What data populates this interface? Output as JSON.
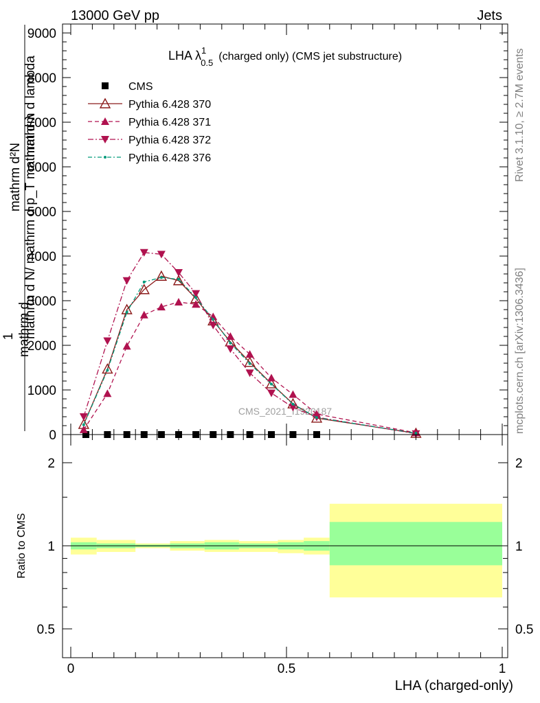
{
  "header": {
    "left": "13000 GeV pp",
    "right": "Jets"
  },
  "side_text": {
    "rivet": "Rivet 3.1.10, ≥ 2.7M events",
    "mcplots": "mcplots.cern.ch [arXiv:1306.3436]"
  },
  "watermark": "CMS_2021_I1920187",
  "colors": {
    "cms": "#000000",
    "p370": "#8b1a1a",
    "p371": "#b0124f",
    "p372": "#b0124f",
    "p376": "#009a7a",
    "band_inner": "#99ff99",
    "band_outer": "#ffff99"
  },
  "chart_data": [
    {
      "type": "line",
      "title": "LHA λ¹₀.₅ (charged only) (CMS jet substructure)",
      "title_main": "LHA λ",
      "title_sup": "1",
      "title_sub": "0.5",
      "title_rest": "(charged only) (CMS jet substructure)",
      "ylabel_left": "1",
      "ylabel_num": "mathrm d²N",
      "ylabel_den": "mathrm d N/ mathrm d p_T mathrm d λ",
      "ylabel_fragments": [
        "mathrm d",
        "N",
        "mathrm d p",
        "mathrm d",
        "mathrm d lambda",
        "T",
        "T",
        "mathrm d N",
        "mathrm d p",
        "mathrm d"
      ],
      "xlim": [
        0,
        1
      ],
      "ylim": [
        0,
        9200
      ],
      "ytick_labels": [
        "0",
        "1000",
        "2000",
        "3000",
        "4000",
        "5000",
        "6000",
        "7000",
        "8000",
        "9000"
      ],
      "yticks": [
        0,
        1000,
        2000,
        3000,
        4000,
        5000,
        6000,
        7000,
        8000,
        9000
      ],
      "legend": [
        "CMS",
        "Pythia 6.428 370",
        "Pythia 6.428 371",
        "Pythia 6.428 372",
        "Pythia 6.428 376"
      ],
      "legend_placement": "top-left",
      "series": [
        {
          "name": "CMS",
          "x": [
            0.035,
            0.085,
            0.13,
            0.17,
            0.21,
            0.25,
            0.29,
            0.33,
            0.37,
            0.415,
            0.465,
            0.515,
            0.57
          ],
          "y": [
            0,
            0,
            0,
            0,
            0,
            0,
            0,
            0,
            0,
            0,
            0,
            0,
            0
          ]
        },
        {
          "name": "Pythia 6.428 370",
          "x": [
            0.03,
            0.085,
            0.13,
            0.17,
            0.21,
            0.25,
            0.29,
            0.33,
            0.37,
            0.415,
            0.465,
            0.515,
            0.57,
            0.8
          ],
          "y": [
            230,
            1470,
            2800,
            3250,
            3550,
            3450,
            3050,
            2550,
            2080,
            1620,
            1140,
            690,
            370,
            30
          ]
        },
        {
          "name": "Pythia 6.428 371",
          "x": [
            0.03,
            0.085,
            0.13,
            0.17,
            0.21,
            0.25,
            0.29,
            0.33,
            0.37,
            0.415,
            0.465,
            0.515,
            0.57,
            0.8
          ],
          "y": [
            110,
            920,
            1980,
            2680,
            2860,
            2970,
            2920,
            2640,
            2200,
            1800,
            1270,
            900,
            460,
            40
          ]
        },
        {
          "name": "Pythia 6.428 372",
          "x": [
            0.03,
            0.085,
            0.13,
            0.17,
            0.21,
            0.25,
            0.29,
            0.33,
            0.37,
            0.415,
            0.465,
            0.515,
            0.57,
            0.8
          ],
          "y": [
            400,
            2100,
            3450,
            4080,
            4040,
            3630,
            3160,
            2450,
            1920,
            1380,
            930,
            610,
            390,
            20
          ]
        },
        {
          "name": "Pythia 6.428 376",
          "x": [
            0.03,
            0.085,
            0.13,
            0.17,
            0.21,
            0.25,
            0.29,
            0.33,
            0.37,
            0.415,
            0.465,
            0.515,
            0.57,
            0.8
          ],
          "y": [
            220,
            1440,
            2740,
            3420,
            3520,
            3480,
            3070,
            2580,
            2050,
            1590,
            1130,
            680,
            380,
            30
          ]
        }
      ]
    },
    {
      "type": "area",
      "ylabel": "Ratio to CMS",
      "xlabel": "LHA (charged-only)",
      "xlim": [
        -0.02,
        1.02
      ],
      "ylim": [
        0.42,
        2.3
      ],
      "ytick_labels": [
        "0.5",
        "1",
        "2"
      ],
      "yticks": [
        0.5,
        1,
        2
      ],
      "xtick_labels": [
        "0",
        "0.5",
        "1"
      ],
      "xticks": [
        0,
        0.5,
        1
      ],
      "reference_line": 1,
      "bands": [
        {
          "x0": 0.0,
          "x1": 0.06,
          "outer": [
            0.93,
            1.07
          ],
          "inner": [
            0.97,
            1.03
          ]
        },
        {
          "x0": 0.06,
          "x1": 0.15,
          "outer": [
            0.95,
            1.05
          ],
          "inner": [
            0.98,
            1.02
          ]
        },
        {
          "x0": 0.15,
          "x1": 0.23,
          "outer": [
            0.98,
            1.02
          ],
          "inner": [
            0.99,
            1.01
          ]
        },
        {
          "x0": 0.23,
          "x1": 0.31,
          "outer": [
            0.96,
            1.04
          ],
          "inner": [
            0.98,
            1.02
          ]
        },
        {
          "x0": 0.31,
          "x1": 0.39,
          "outer": [
            0.95,
            1.05
          ],
          "inner": [
            0.97,
            1.03
          ]
        },
        {
          "x0": 0.39,
          "x1": 0.48,
          "outer": [
            0.95,
            1.04
          ],
          "inner": [
            0.98,
            1.02
          ]
        },
        {
          "x0": 0.48,
          "x1": 0.54,
          "outer": [
            0.94,
            1.05
          ],
          "inner": [
            0.97,
            1.03
          ]
        },
        {
          "x0": 0.54,
          "x1": 0.6,
          "outer": [
            0.93,
            1.07
          ],
          "inner": [
            0.96,
            1.04
          ]
        },
        {
          "x0": 0.6,
          "x1": 1.0,
          "outer": [
            0.65,
            1.42
          ],
          "inner": [
            0.85,
            1.22
          ]
        }
      ]
    }
  ]
}
